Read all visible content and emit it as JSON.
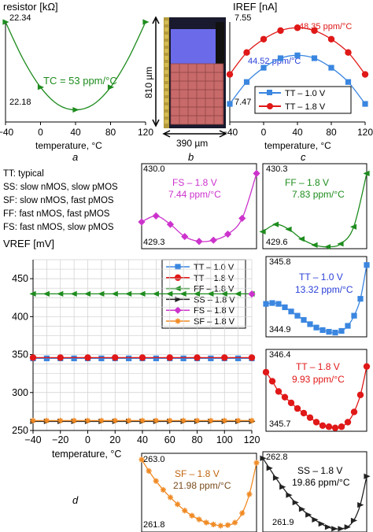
{
  "panel_labels": {
    "a": "a",
    "b": "b",
    "c": "c",
    "d": "d"
  },
  "definitions": [
    "TT: typical",
    "SS: slow nMOS, slow pMOS",
    "SF: slow nMOS, fast pMOS",
    "FF: fast nMOS, fast pMOS",
    "FS: fast nMOS, slow pMOS"
  ],
  "die": {
    "height_label": "810 µm",
    "width_label": "390 µm"
  },
  "colors": {
    "TT10": "#3a86e0",
    "TT18": "#e01818",
    "FF": "#1e8c1e",
    "SS": "#222222",
    "FS": "#cc33cc",
    "SF": "#f08a24",
    "die_blue": "#6b6bea",
    "die_red": "#c86a6a",
    "die_dark": "#1a1a2e"
  },
  "chart_data": [
    {
      "id": "a",
      "type": "line",
      "ylabel": "resistor [kΩ]",
      "xlabel": "temperature, °C",
      "x_ticks": [
        "−40",
        "0",
        "40",
        "80",
        "120"
      ],
      "y_top_label": "22.34",
      "y_bottom_label": "22.18",
      "annotation": "TC = 53 ppm/°C",
      "xlim": [
        -40,
        120
      ],
      "ylim": [
        22.11,
        22.34
      ],
      "series": [
        {
          "color_key": "FF",
          "marker": "triangle-right",
          "x": [
            -40,
            -20,
            0,
            20,
            40,
            60,
            80,
            100,
            120
          ],
          "y": [
            22.34,
            22.255,
            22.19,
            22.15,
            22.138,
            22.15,
            22.19,
            22.255,
            22.34
          ]
        }
      ]
    },
    {
      "id": "c",
      "type": "line",
      "ylabel": "IREF [nA]",
      "xlabel": "temperature, °C",
      "x_ticks": [
        "−40",
        "0",
        "40",
        "80",
        "120"
      ],
      "y_top_label": "7.55",
      "y_bottom_label": "7.47",
      "xlim": [
        -40,
        120
      ],
      "ylim": [
        7.455,
        7.56
      ],
      "annotations": [
        "48.35 ppm/°C",
        "44.52 ppm/°C"
      ],
      "legend": [
        "TT – 1.0 V",
        "TT – 1.8 V"
      ],
      "series": [
        {
          "name": "TT – 1.0 V",
          "color_key": "TT10",
          "marker": "square",
          "x": [
            -40,
            -20,
            0,
            20,
            40,
            60,
            80,
            100,
            120
          ],
          "y": [
            7.474,
            7.497,
            7.512,
            7.522,
            7.525,
            7.522,
            7.512,
            7.497,
            7.474
          ]
        },
        {
          "name": "TT – 1.8 V",
          "color_key": "TT18",
          "marker": "circle",
          "x": [
            -40,
            -20,
            0,
            20,
            40,
            60,
            80,
            100,
            120
          ],
          "y": [
            7.505,
            7.528,
            7.542,
            7.551,
            7.554,
            7.551,
            7.542,
            7.528,
            7.505
          ]
        }
      ]
    },
    {
      "id": "fs",
      "type": "line",
      "y_top_label": "430.0",
      "y_bottom_label": "429.3",
      "title": "FS – 1.8 V",
      "tc": "7.44 ppm/°C",
      "xlim": [
        -40,
        120
      ],
      "ylim": [
        429.3,
        430.0
      ],
      "series": [
        {
          "color_key": "FS",
          "marker": "diamond",
          "x": [
            -40,
            -20,
            0,
            20,
            40,
            60,
            80,
            100,
            120
          ],
          "y": [
            429.52,
            429.57,
            429.5,
            429.4,
            429.36,
            429.37,
            429.42,
            429.55,
            429.92
          ]
        }
      ]
    },
    {
      "id": "ff",
      "type": "line",
      "y_top_label": "430.3",
      "y_bottom_label": "429.6",
      "title": "FF – 1.8 V",
      "tc": "7.83 ppm/°C",
      "xlim": [
        -40,
        120
      ],
      "ylim": [
        429.6,
        430.3
      ],
      "series": [
        {
          "color_key": "FF",
          "marker": "triangle-left",
          "x": [
            -40,
            -20,
            0,
            20,
            40,
            60,
            80,
            100,
            120
          ],
          "y": [
            429.74,
            429.8,
            429.76,
            429.68,
            429.63,
            429.615,
            429.64,
            429.78,
            430.22
          ]
        }
      ]
    },
    {
      "id": "d",
      "type": "line",
      "ylabel": "VREF [mV]",
      "xlabel": "temperature, °C",
      "x_ticks": [
        "−40",
        "−20",
        "0",
        "20",
        "40",
        "60",
        "80",
        "100",
        "120"
      ],
      "y_ticks": [
        "250",
        "300",
        "350",
        "400",
        "450"
      ],
      "xlim": [
        -40,
        120
      ],
      "ylim": [
        250,
        475
      ],
      "grid": true,
      "legend": [
        "TT – 1.0 V",
        "TT – 1.8 V",
        "FF – 1.8 V",
        "SS – 1.8 V",
        "FS – 1.8 V",
        "SF – 1.8 V"
      ],
      "series": [
        {
          "name": "TT – 1.0 V",
          "color_key": "TT10",
          "marker": "square",
          "x": [
            -40,
            -30,
            -20,
            -10,
            0,
            10,
            20,
            30,
            40,
            50,
            60,
            70,
            80,
            90,
            100,
            110,
            120
          ],
          "y": [
            345,
            345,
            345,
            345,
            345,
            345,
            345,
            345,
            345,
            345,
            345,
            345,
            345,
            345,
            345,
            345,
            345
          ]
        },
        {
          "name": "TT – 1.8 V",
          "color_key": "TT18",
          "marker": "circle",
          "x": [
            -40,
            -20,
            0,
            20,
            40,
            60,
            80,
            100,
            120
          ],
          "y": [
            346,
            346,
            346,
            346,
            346,
            346,
            346,
            346,
            346
          ]
        },
        {
          "name": "FF – 1.8 V",
          "color_key": "FF",
          "marker": "triangle-left",
          "x": [
            -40,
            -30,
            -20,
            -10,
            0,
            10,
            20,
            30,
            40,
            50,
            60,
            70,
            80,
            90,
            100,
            110,
            120
          ],
          "y": [
            430,
            430,
            430,
            430,
            430,
            430,
            430,
            430,
            430,
            430,
            430,
            430,
            430,
            430,
            430,
            430,
            430
          ]
        },
        {
          "name": "SS – 1.8 V",
          "color_key": "SS",
          "marker": "triangle-right",
          "x": [
            -40,
            -30,
            -20,
            -10,
            0,
            10,
            20,
            30,
            40,
            50,
            60,
            70,
            80,
            90,
            100,
            110,
            120
          ],
          "y": [
            262,
            262,
            262,
            262,
            262,
            262,
            262,
            262,
            262,
            262,
            262,
            262,
            262,
            262,
            262,
            262,
            262
          ]
        },
        {
          "name": "FS – 1.8 V",
          "color_key": "FS",
          "marker": "diamond",
          "x": [
            120
          ],
          "y": [
            429.8
          ]
        },
        {
          "name": "SF – 1.8 V",
          "color_key": "SF",
          "marker": "asterisk",
          "x": [
            -40,
            -30,
            -20,
            -10,
            0,
            10,
            20,
            30,
            40,
            50,
            60,
            70,
            80,
            90,
            100,
            110,
            120
          ],
          "y": [
            263,
            263,
            263,
            263,
            263,
            263,
            263,
            263,
            263,
            263,
            263,
            263,
            263,
            263,
            263,
            263,
            263
          ]
        }
      ]
    },
    {
      "id": "tt10",
      "type": "line",
      "y_top_label": "345.8",
      "y_bottom_label": "344.9",
      "title": "TT – 1.0 V",
      "tc": "13.32 ppm/°C",
      "xlim": [
        -40,
        120
      ],
      "ylim": [
        344.85,
        345.8
      ],
      "series": [
        {
          "color_key": "TT10",
          "marker": "square",
          "x": [
            -40,
            -30,
            -20,
            -10,
            0,
            10,
            20,
            30,
            40,
            50,
            60,
            70,
            80,
            90,
            100,
            110,
            120
          ],
          "y": [
            345.24,
            345.25,
            345.24,
            345.2,
            345.15,
            345.1,
            345.05,
            345.0,
            344.96,
            344.93,
            344.91,
            344.9,
            344.92,
            344.98,
            345.1,
            345.3,
            345.7
          ]
        }
      ]
    },
    {
      "id": "tt18",
      "type": "line",
      "y_top_label": "346.4",
      "y_bottom_label": "345.7",
      "title": "TT – 1.8 V",
      "tc": "9.93 ppm/°C",
      "xlim": [
        -40,
        120
      ],
      "ylim": [
        345.68,
        346.4
      ],
      "series": [
        {
          "color_key": "TT18",
          "marker": "circle",
          "x": [
            -40,
            -30,
            -20,
            -10,
            0,
            10,
            20,
            30,
            40,
            50,
            60,
            70,
            80,
            90,
            100,
            110,
            120
          ],
          "y": [
            346.2,
            346.12,
            346.03,
            345.98,
            345.93,
            345.88,
            345.84,
            345.8,
            345.76,
            345.73,
            345.72,
            345.71,
            345.72,
            345.76,
            345.85,
            346.0,
            346.25
          ]
        }
      ]
    },
    {
      "id": "sf",
      "type": "line",
      "y_top_label": "263.0",
      "y_bottom_label": "261.8",
      "title": "SF – 1.8 V",
      "tc": "21.98 ppm/°C",
      "xlim": [
        -40,
        120
      ],
      "ylim": [
        261.75,
        263.0
      ],
      "series": [
        {
          "color_key": "SF",
          "marker": "asterisk",
          "x": [
            -40,
            -30,
            -20,
            -10,
            0,
            10,
            20,
            30,
            40,
            50,
            60,
            70,
            80,
            90,
            100,
            110,
            120
          ],
          "y": [
            262.9,
            262.72,
            262.56,
            262.42,
            262.3,
            262.19,
            262.09,
            262.01,
            261.95,
            261.9,
            261.87,
            261.85,
            261.86,
            261.9,
            262.05,
            262.35,
            262.85
          ]
        }
      ]
    },
    {
      "id": "ss",
      "type": "line",
      "y_top_label": "262.8",
      "y_bottom_label": "261.9",
      "title": "SS – 1.8 V",
      "tc": "19.86 ppm/°C",
      "xlim": [
        -40,
        120
      ],
      "ylim": [
        261.82,
        262.8
      ],
      "series": [
        {
          "color_key": "SS",
          "marker": "triangle-right",
          "x": [
            -40,
            -30,
            -20,
            -10,
            0,
            10,
            20,
            30,
            40,
            50,
            60,
            70,
            80,
            90,
            100,
            110,
            120
          ],
          "y": [
            262.72,
            262.6,
            262.48,
            262.37,
            262.27,
            262.18,
            262.1,
            262.03,
            261.97,
            261.92,
            261.88,
            261.86,
            261.86,
            261.88,
            261.96,
            262.15,
            262.5
          ]
        }
      ]
    }
  ]
}
